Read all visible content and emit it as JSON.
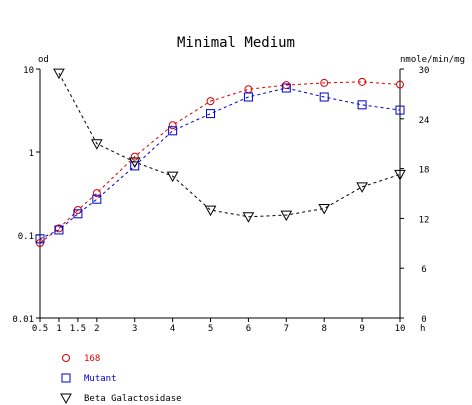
{
  "chart_data": {
    "type": "line",
    "title": "Minimal Medium",
    "left_axis_label": "od",
    "right_axis_label": "nmole/min/mg",
    "x_unit_label": "h",
    "x_ticks": [
      "0.5",
      "1",
      "1.5",
      "2",
      "3",
      "4",
      "5",
      "6",
      "7",
      "8",
      "9",
      "10"
    ],
    "x_tick_values": [
      0.5,
      1,
      1.5,
      2,
      3,
      4,
      5,
      6,
      7,
      8,
      9,
      10
    ],
    "xlim": [
      0.5,
      10
    ],
    "left_ticks": [
      "0.01",
      "0.1",
      "1",
      "10"
    ],
    "left_tick_values": [
      0.01,
      0.1,
      1,
      10
    ],
    "ylim_left": [
      0.01,
      10
    ],
    "left_scale": "log",
    "right_ticks": [
      "0",
      "6",
      "12",
      "18",
      "24",
      "30"
    ],
    "right_tick_values": [
      0,
      6,
      12,
      18,
      24,
      30
    ],
    "ylim_right": [
      0,
      30
    ],
    "grid": false,
    "legend_position": "bottom-left",
    "series": [
      {
        "name": "168",
        "axis": "left",
        "color": "#dd0000",
        "marker": "circle",
        "x": [
          0.5,
          1,
          1.5,
          2,
          3,
          4,
          5,
          6,
          7,
          8,
          9,
          10
        ],
        "values": [
          0.08,
          0.12,
          0.2,
          0.32,
          0.88,
          2.1,
          4.1,
          5.7,
          6.4,
          6.8,
          7.0,
          6.5
        ]
      },
      {
        "name": "Mutant",
        "axis": "left",
        "color": "#0000cc",
        "marker": "square",
        "x": [
          0.5,
          1,
          1.5,
          2,
          3,
          4,
          5,
          6,
          7,
          8,
          9,
          10
        ],
        "values": [
          0.09,
          0.115,
          0.18,
          0.27,
          0.68,
          1.8,
          2.9,
          4.6,
          5.9,
          4.6,
          3.7,
          3.2
        ]
      },
      {
        "name": "Beta Galactosidase",
        "axis": "right",
        "color": "#000000",
        "marker": "triangle-down",
        "x": [
          1,
          2,
          3,
          4,
          5,
          6,
          7,
          8,
          9,
          10
        ],
        "values": [
          29.5,
          21.0,
          18.8,
          17.1,
          13.0,
          12.2,
          12.4,
          13.2,
          15.8,
          17.3
        ]
      }
    ]
  }
}
